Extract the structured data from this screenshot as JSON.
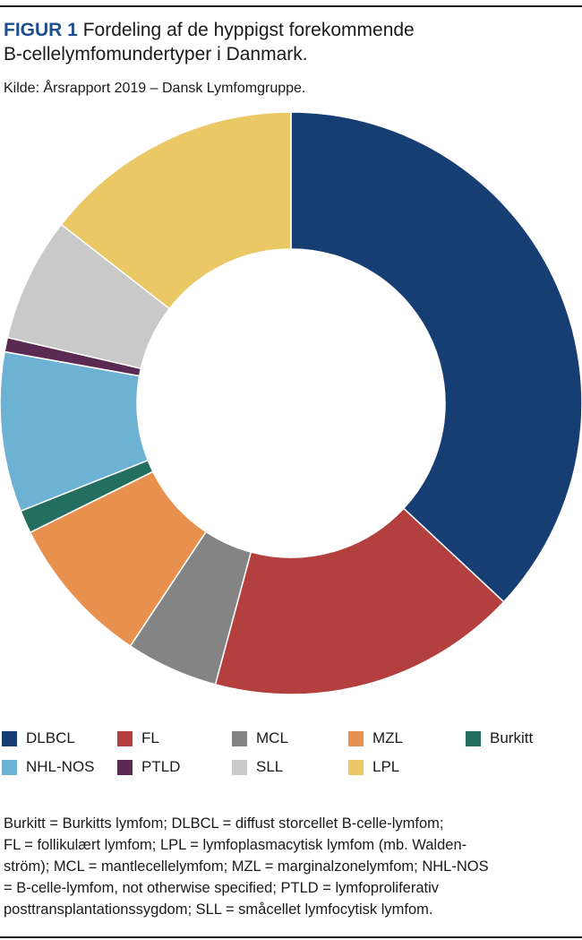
{
  "figure": {
    "label": "FIGUR 1",
    "title_line1": "Fordeling af de hyppigst forekommende",
    "title_line2": "B-cellelymfomundertyper i Danmark.",
    "source": "Kilde: Årsrapport 2019 – Dansk Lymfomgruppe."
  },
  "chart_data": {
    "type": "pie",
    "style": "donut",
    "start": "12 o'clock, clockwise",
    "title": "",
    "categories": [
      "DLBCL",
      "FL",
      "MCL",
      "MZL",
      "Burkitt",
      "NHL-NOS",
      "PTLD",
      "SLL",
      "LPL"
    ],
    "values": [
      37.5,
      17.5,
      5.2,
      8.5,
      1.3,
      9.0,
      0.8,
      7.0,
      14.7
    ],
    "unit": "%",
    "colors": [
      "#173e73",
      "#b43f3f",
      "#848484",
      "#e8914f",
      "#246e60",
      "#6db1d3",
      "#5b2a52",
      "#c9c9c9",
      "#e9c865"
    ],
    "legend_position": "bottom"
  },
  "legend": [
    {
      "label": "DLBCL",
      "color": "#173e73"
    },
    {
      "label": "FL",
      "color": "#b43f3f"
    },
    {
      "label": "MCL",
      "color": "#848484"
    },
    {
      "label": "MZL",
      "color": "#e8914f"
    },
    {
      "label": "Burkitt",
      "color": "#246e60"
    },
    {
      "label": "NHL-NOS",
      "color": "#6db1d3"
    },
    {
      "label": "PTLD",
      "color": "#5b2a52"
    },
    {
      "label": "SLL",
      "color": "#c9c9c9"
    },
    {
      "label": "LPL",
      "color": "#e9c865"
    }
  ],
  "notes": {
    "line1": "Burkitt = Burkitts lymfom; DLBCL = diffust storcellet B-celle-lymfom;",
    "line2": "FL = follikulært lymfom; LPL = lymfoplasmacytisk lymfom (mb. Walden-",
    "line3": "ström); MCL = mantlecellelymfom; MZL = marginalzonelymfom; NHL-NOS",
    "line4": "= B-celle-lymfom, not otherwise specified; PTLD = lymfoproliferativ",
    "line5": "posttransplantationssygdom; SLL = småcellet lymfocytisk lymfom."
  }
}
